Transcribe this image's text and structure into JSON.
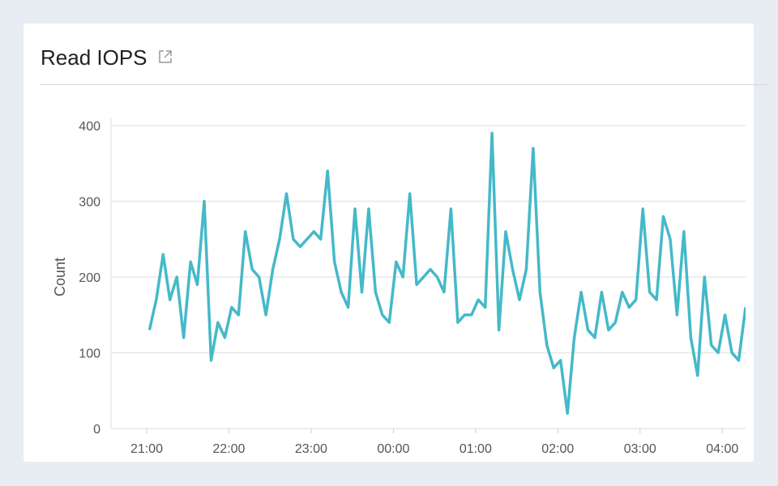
{
  "panel": {
    "title": "Read IOPS",
    "link_icon": "external-link-icon"
  },
  "chart_data": {
    "type": "line",
    "title": "Read IOPS",
    "xlabel": "",
    "ylabel": "Count",
    "ylim": [
      0,
      400
    ],
    "xlim": [
      "20:34",
      "04:17"
    ],
    "yticks": [
      "0",
      "100",
      "200",
      "300",
      "400"
    ],
    "xticks": [
      "21:00",
      "22:00",
      "23:00",
      "00:00",
      "01:00",
      "02:00",
      "03:00",
      "04:00"
    ],
    "grid": true,
    "color": "#45b9c8",
    "start_time": "21:02",
    "interval_minutes": 5,
    "values": [
      130,
      170,
      230,
      170,
      200,
      120,
      220,
      190,
      300,
      90,
      140,
      120,
      160,
      150,
      260,
      210,
      200,
      150,
      210,
      250,
      310,
      250,
      240,
      250,
      260,
      250,
      340,
      220,
      180,
      160,
      290,
      180,
      290,
      180,
      150,
      140,
      220,
      200,
      310,
      190,
      200,
      210,
      200,
      180,
      290,
      140,
      150,
      150,
      170,
      160,
      390,
      130,
      260,
      210,
      170,
      210,
      370,
      180,
      110,
      80,
      90,
      20,
      120,
      180,
      130,
      120,
      180,
      130,
      140,
      180,
      160,
      170,
      290,
      180,
      170,
      280,
      250,
      150,
      260,
      120,
      70,
      200,
      110,
      100,
      150,
      100,
      90,
      160
    ]
  }
}
